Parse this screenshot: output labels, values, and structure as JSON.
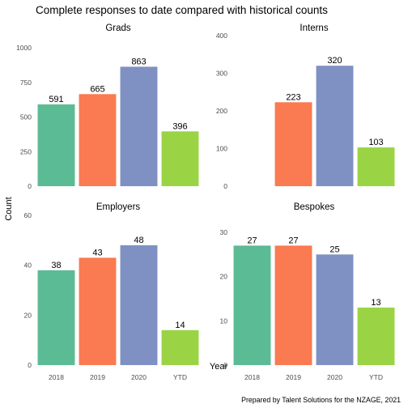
{
  "chart_data": {
    "type": "bar",
    "title": "Complete responses to date compared with historical counts",
    "xlabel": "Year",
    "ylabel": "Count",
    "caption": "Prepared by Talent Solutions for the NZAGE, 2021",
    "categories": [
      "2018",
      "2019",
      "2020",
      "YTD"
    ],
    "colors": [
      "#5bbb94",
      "#fa7a51",
      "#7f91c2",
      "#9ad445"
    ],
    "grid": false,
    "legend": "none",
    "panels": [
      {
        "title": "Grads",
        "ylim": [
          0,
          1000
        ],
        "yticks": [
          "0",
          "250",
          "500",
          "750",
          "1000"
        ],
        "values": [
          591,
          665,
          863,
          396
        ],
        "labels": [
          "591",
          "665",
          "863",
          "396"
        ]
      },
      {
        "title": "Interns",
        "ylim": [
          0,
          400
        ],
        "yticks": [
          "0",
          "100",
          "200",
          "300",
          "400"
        ],
        "values": [
          null,
          223,
          320,
          103
        ],
        "labels": [
          "",
          "223",
          "320",
          "103"
        ]
      },
      {
        "title": "Employers",
        "ylim": [
          0,
          60
        ],
        "yticks": [
          "0",
          "20",
          "40",
          "60"
        ],
        "values": [
          38,
          43,
          48,
          14
        ],
        "labels": [
          "38",
          "43",
          "48",
          "14"
        ]
      },
      {
        "title": "Bespokes",
        "ylim": [
          0,
          30
        ],
        "yticks": [
          "0",
          "10",
          "20",
          "30"
        ],
        "values": [
          27,
          27,
          25,
          13
        ],
        "labels": [
          "27",
          "27",
          "25",
          "13"
        ]
      }
    ]
  }
}
